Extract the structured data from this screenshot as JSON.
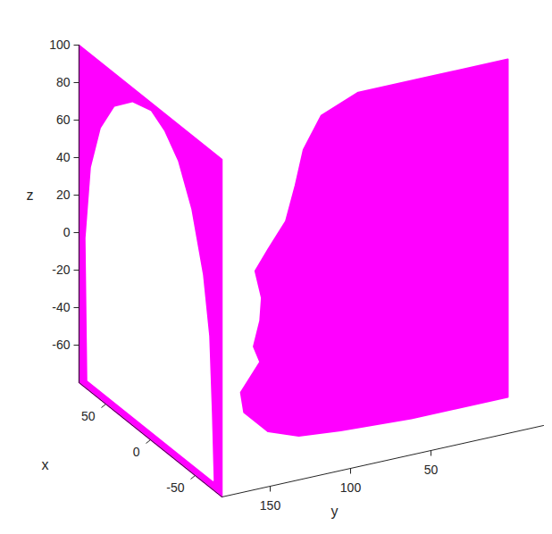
{
  "chart_data": {
    "type": "scatter3d",
    "x_label": "x",
    "y_label": "y",
    "z_label": "z",
    "xlim": [
      -80,
      80
    ],
    "ylim": [
      -20,
      180
    ],
    "zlim": [
      -80,
      100
    ],
    "xticks": [
      -50,
      0,
      50
    ],
    "yticks": [
      50,
      100,
      150
    ],
    "zticks": [
      -60,
      -40,
      -20,
      0,
      20,
      40,
      60,
      80,
      100
    ],
    "color": "#ff00ff",
    "head": {
      "x": -40,
      "yz": [
        [
          -20,
          100
        ],
        [
          30,
          100
        ],
        [
          73,
          100
        ],
        [
          96,
          92
        ],
        [
          107,
          76
        ],
        [
          112,
          58
        ],
        [
          118,
          40
        ],
        [
          129,
          27
        ],
        [
          137,
          17
        ],
        [
          133,
          2
        ],
        [
          134,
          -10
        ],
        [
          138,
          -23
        ],
        [
          134,
          -32
        ],
        [
          146,
          -46
        ],
        [
          144,
          -57
        ],
        [
          129,
          -70
        ],
        [
          110,
          -76
        ],
        [
          84,
          -78
        ],
        [
          40,
          -80
        ],
        [
          -20,
          -80
        ]
      ]
    },
    "projection": {
      "y": 180,
      "xz_hole": [
        [
          70,
          -75
        ],
        [
          72,
          0
        ],
        [
          66,
          40
        ],
        [
          55,
          65
        ],
        [
          40,
          82
        ],
        [
          20,
          92
        ],
        [
          0,
          95
        ],
        [
          -15,
          90
        ],
        [
          -30,
          80
        ],
        [
          -45,
          60
        ],
        [
          -58,
          30
        ],
        [
          -65,
          0
        ],
        [
          -68,
          -40
        ],
        [
          -70,
          -75
        ]
      ]
    }
  }
}
